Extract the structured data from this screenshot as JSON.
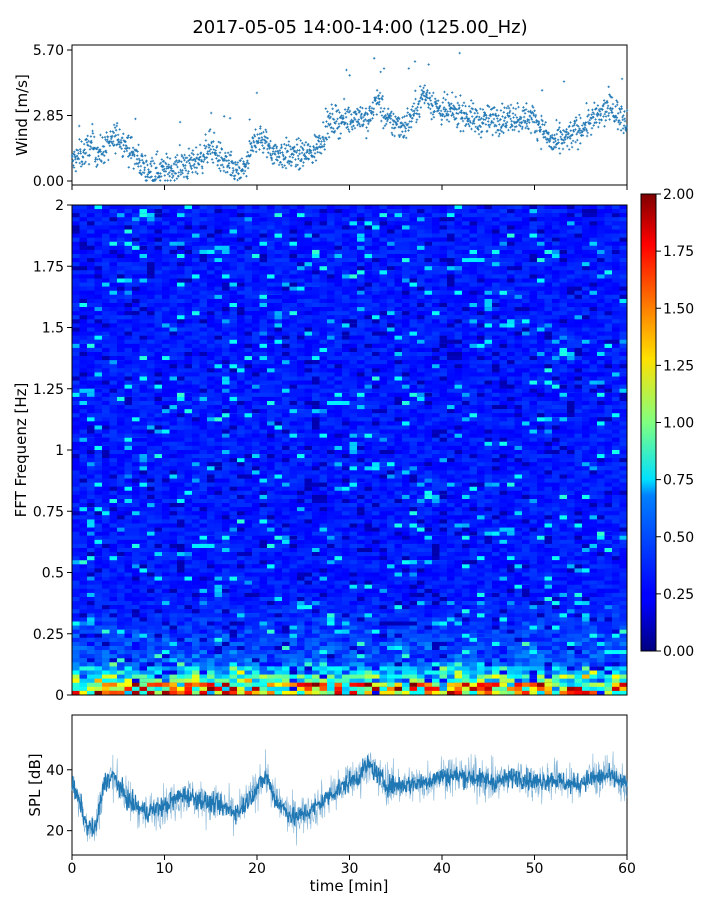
{
  "chart_data": [
    {
      "type": "scatter",
      "title": "2017-05-05 14:00-14:00 (125.00_Hz)",
      "ylabel": "Wind [m/s]",
      "xlim": [
        0,
        60
      ],
      "ylim": [
        0.0,
        5.7
      ],
      "yticks": [
        "0.00",
        "2.85",
        "5.70"
      ],
      "series": [
        {
          "name": "wind speed",
          "x": [
            0,
            2,
            3,
            4,
            5,
            6,
            8,
            10,
            12,
            14,
            15,
            16,
            18,
            19,
            20,
            22,
            24,
            26,
            28,
            30,
            31,
            32,
            33,
            34,
            36,
            37,
            38,
            40,
            42,
            44,
            46,
            48,
            50,
            52,
            54,
            56,
            57,
            58,
            60
          ],
          "y": [
            0.8,
            1.5,
            1.2,
            1.6,
            2.0,
            1.5,
            0.5,
            0.5,
            0.6,
            1.0,
            1.6,
            1.0,
            0.3,
            0.8,
            2.0,
            1.2,
            1.1,
            1.2,
            2.6,
            2.7,
            2.9,
            2.6,
            3.6,
            2.6,
            2.4,
            3.0,
            3.8,
            3.0,
            3.0,
            2.6,
            2.7,
            2.8,
            2.7,
            1.6,
            2.0,
            2.6,
            2.8,
            3.2,
            2.6
          ]
        }
      ]
    },
    {
      "type": "heatmap",
      "ylabel": "FFT Frequenz [Hz]",
      "xlim": [
        0,
        60
      ],
      "ylim": [
        0,
        2
      ],
      "yticks": [
        "0",
        "0.25",
        "0.5",
        "0.75",
        "1",
        "1.25",
        "1.5",
        "1.75",
        "2"
      ],
      "colorbar": {
        "range": [
          0.0,
          2.0
        ],
        "ticks": [
          "0.00",
          "0.25",
          "0.50",
          "0.75",
          "1.00",
          "1.25",
          "1.50",
          "1.75",
          "2.00"
        ],
        "colormap": "jet"
      },
      "description_values": {
        "high_band_hz": [
          0,
          0.05
        ],
        "high_band_amplitude": 1.8,
        "typical_amplitude": 0.3
      }
    },
    {
      "type": "line",
      "ylabel": "SPL [dB]",
      "xlabel": "time [min]",
      "xlim": [
        0,
        60
      ],
      "ylim": [
        12,
        58
      ],
      "xticks": [
        "0",
        "10",
        "20",
        "30",
        "40",
        "50",
        "60"
      ],
      "yticks": [
        "20",
        "40"
      ],
      "color": "#1f77b4",
      "series": [
        {
          "name": "SPL",
          "x": [
            0,
            1,
            1.5,
            2.5,
            3.5,
            4.5,
            6,
            8,
            10,
            12,
            14,
            16,
            18,
            20,
            21,
            22,
            24,
            26,
            28,
            30,
            31,
            32,
            34,
            36,
            38,
            40,
            42,
            44,
            46,
            48,
            50,
            52,
            54,
            56,
            58,
            60
          ],
          "y": [
            35,
            28,
            22,
            20,
            36,
            38,
            30,
            26,
            28,
            32,
            30,
            28,
            26,
            34,
            38,
            30,
            24,
            27,
            32,
            36,
            38,
            42,
            35,
            35,
            36,
            38,
            38,
            37,
            36,
            38,
            36,
            37,
            35,
            37,
            38,
            35
          ]
        }
      ]
    }
  ]
}
